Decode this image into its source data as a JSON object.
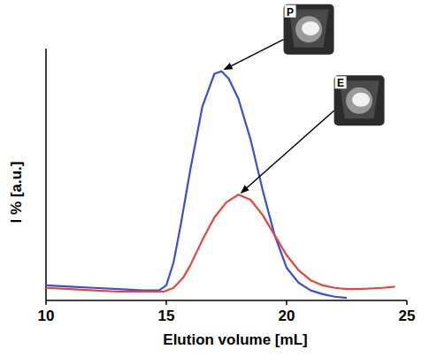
{
  "chart_data": {
    "type": "line",
    "x_label": "Elution volume [mL]",
    "y_label": "I % [a.u.]",
    "xlim": [
      10,
      25
    ],
    "xticks": [
      10,
      15,
      20,
      25
    ],
    "ylim": [
      0,
      100
    ],
    "tick_labels": "x",
    "grid": false,
    "series": [
      {
        "name": "P",
        "color": "#3a4fd4",
        "x": [
          10,
          11,
          12,
          13,
          14,
          14.7,
          15,
          15.3,
          15.6,
          16,
          16.5,
          17,
          17.3,
          17.6,
          18,
          18.5,
          19,
          19.5,
          20,
          20.5,
          21,
          21.5,
          22,
          22.5
        ],
        "values": [
          6,
          5.5,
          5,
          4.5,
          4,
          4,
          6,
          15,
          30,
          52,
          77,
          90,
          91,
          88,
          80,
          64,
          44,
          26,
          13,
          7,
          4,
          2.5,
          1.5,
          1
        ]
      },
      {
        "name": "E",
        "color": "#e8443a",
        "x": [
          10,
          11,
          12,
          13,
          14,
          14.9,
          15.3,
          15.7,
          16,
          16.5,
          17,
          17.5,
          18,
          18.5,
          19,
          19.5,
          20,
          20.5,
          21,
          21.5,
          22,
          22.5,
          23,
          24,
          24.5
        ],
        "values": [
          5,
          4.5,
          4,
          3.5,
          3.5,
          3.5,
          5,
          9,
          14,
          24,
          33,
          39,
          42,
          40,
          34,
          26,
          18,
          12,
          8,
          6,
          5,
          4.5,
          4.5,
          5,
          5.5
        ]
      }
    ]
  }
}
